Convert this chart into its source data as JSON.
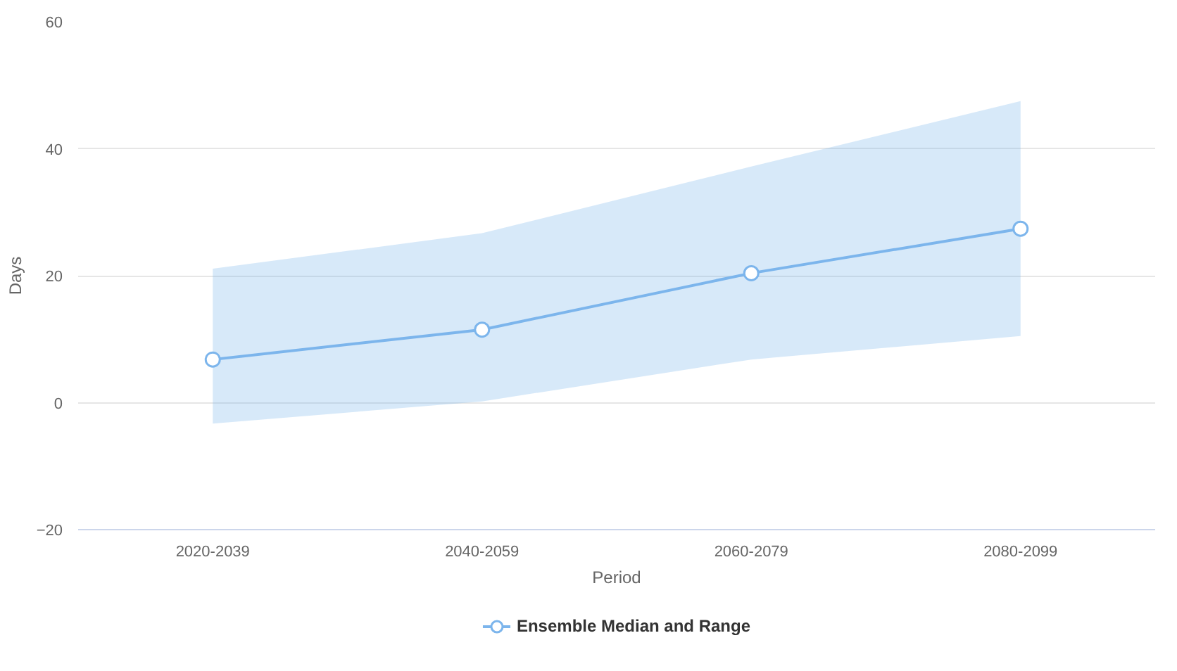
{
  "chart_data": {
    "type": "line",
    "xlabel": "Period",
    "ylabel": "Days",
    "categories": [
      "2020-2039",
      "2040-2059",
      "2060-2079",
      "2080-2099"
    ],
    "series": [
      {
        "name": "Ensemble Median and Range",
        "color": "#7cb5ec",
        "values": [
          6.8,
          11.5,
          20.4,
          27.4
        ],
        "lower": [
          -3.3,
          0.2,
          6.8,
          10.5
        ],
        "upper": [
          21.1,
          26.7,
          37.2,
          47.5
        ]
      }
    ],
    "ylim": [
      -20,
      60
    ],
    "yticks": [
      -20,
      0,
      20,
      40,
      60
    ],
    "grid": "y",
    "legend": "bottom",
    "marker": "circle",
    "line_style": "solid"
  }
}
